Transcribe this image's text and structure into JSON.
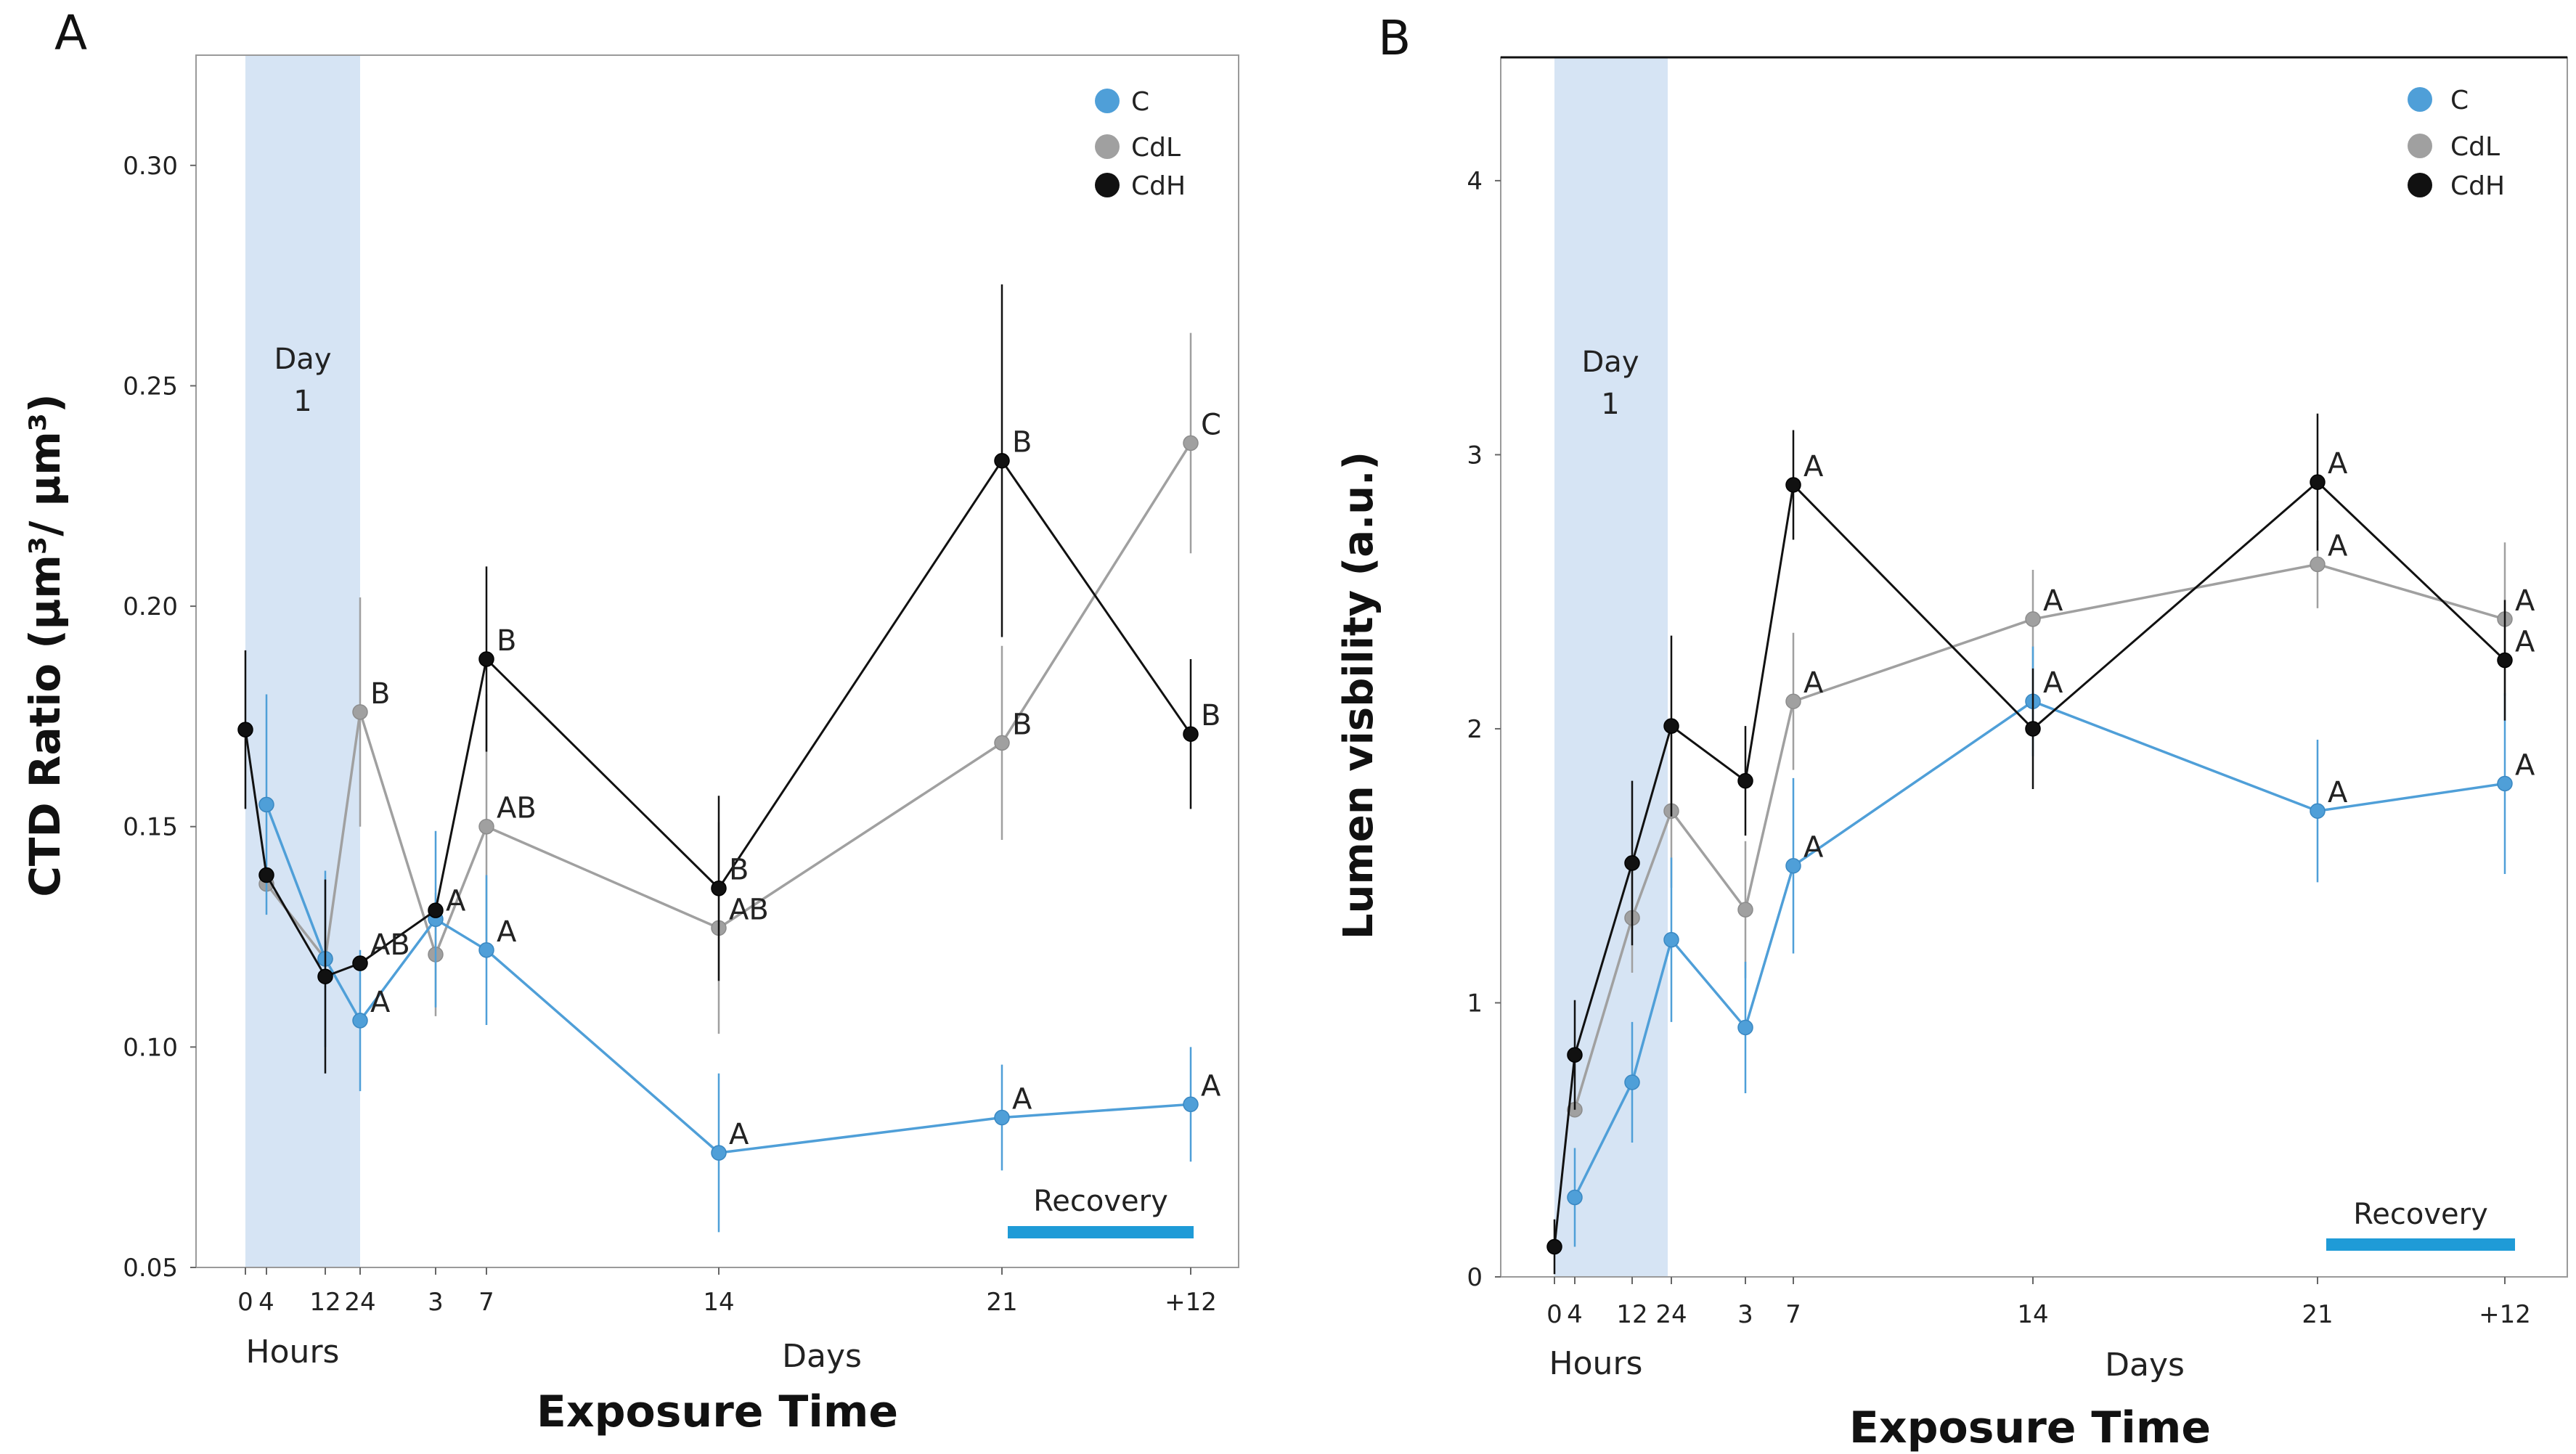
{
  "chart_data": [
    {
      "type": "line",
      "panel_label": "A",
      "ylabel": "CTD Ratio (µm³/ µm³)",
      "xlabel": "Exposure Time",
      "x_group_labels": [
        "Hours",
        "Days"
      ],
      "ylim": [
        0.05,
        0.325
      ],
      "yticks": [
        0.05,
        0.1,
        0.15,
        0.2,
        0.25,
        0.3
      ],
      "ytick_labels": [
        "0.05",
        "0.10",
        "0.15",
        "0.20",
        "0.25",
        "0.30"
      ],
      "x_ticks": [
        "0",
        "4",
        "12",
        "24",
        "3",
        "7",
        "14",
        "21",
        "+12"
      ],
      "shaded_band": {
        "label_line1": "Day",
        "label_line2": "1",
        "from": "0",
        "to": "24"
      },
      "recovery_label": "Recovery",
      "series": [
        {
          "name": "C",
          "color": "#4f9fd8",
          "points": [
            {
              "x": "4",
              "y": 0.155,
              "err": 0.025,
              "letter": ""
            },
            {
              "x": "12",
              "y": 0.12,
              "err": 0.02,
              "letter": ""
            },
            {
              "x": "24",
              "y": 0.106,
              "err": 0.016,
              "letter": "A"
            },
            {
              "x": "3",
              "y": 0.129,
              "err": 0.02,
              "letter": "A"
            },
            {
              "x": "7",
              "y": 0.122,
              "err": 0.017,
              "letter": "A"
            },
            {
              "x": "14",
              "y": 0.076,
              "err": 0.018,
              "letter": "A"
            },
            {
              "x": "21",
              "y": 0.084,
              "err": 0.012,
              "letter": "A"
            },
            {
              "x": "+12",
              "y": 0.087,
              "err": 0.013,
              "letter": "A"
            }
          ]
        },
        {
          "name": "CdL",
          "color": "#a0a0a0",
          "points": [
            {
              "x": "4",
              "y": 0.137,
              "err": 0.0,
              "letter": ""
            },
            {
              "x": "12",
              "y": 0.12,
              "err": 0.0,
              "letter": ""
            },
            {
              "x": "24",
              "y": 0.176,
              "err": 0.026,
              "letter": "B"
            },
            {
              "x": "3",
              "y": 0.121,
              "err": 0.014,
              "letter": ""
            },
            {
              "x": "7",
              "y": 0.15,
              "err": 0.03,
              "letter": "AB"
            },
            {
              "x": "14",
              "y": 0.127,
              "err": 0.024,
              "letter": "AB"
            },
            {
              "x": "21",
              "y": 0.169,
              "err": 0.022,
              "letter": "B"
            },
            {
              "x": "+12",
              "y": 0.237,
              "err": 0.025,
              "letter": "C"
            }
          ]
        },
        {
          "name": "CdH",
          "color": "#111111",
          "points": [
            {
              "x": "0",
              "y": 0.172,
              "err": 0.018,
              "letter": ""
            },
            {
              "x": "4",
              "y": 0.139,
              "err": 0.0,
              "letter": ""
            },
            {
              "x": "12",
              "y": 0.116,
              "err": 0.022,
              "letter": ""
            },
            {
              "x": "24",
              "y": 0.119,
              "err": 0.0,
              "letter": "AB"
            },
            {
              "x": "3",
              "y": 0.131,
              "err": 0.0,
              "letter": ""
            },
            {
              "x": "7",
              "y": 0.188,
              "err": 0.021,
              "letter": "B"
            },
            {
              "x": "14",
              "y": 0.136,
              "err": 0.021,
              "letter": "B"
            },
            {
              "x": "21",
              "y": 0.233,
              "err": 0.04,
              "letter": "B"
            },
            {
              "x": "+12",
              "y": 0.171,
              "err": 0.017,
              "letter": "B"
            }
          ]
        }
      ]
    },
    {
      "type": "line",
      "panel_label": "B",
      "ylabel": "Lumen visbility (a.u.)",
      "xlabel": "Exposure Time",
      "x_group_labels": [
        "Hours",
        "Days"
      ],
      "ylim": [
        0,
        4.45
      ],
      "yticks": [
        0,
        1,
        2,
        3,
        4
      ],
      "ytick_labels": [
        "0",
        "1",
        "2",
        "3",
        "4"
      ],
      "x_ticks": [
        "0",
        "4",
        "12",
        "24",
        "3",
        "7",
        "14",
        "21",
        "+12"
      ],
      "shaded_band": {
        "label_line1": "Day",
        "label_line2": "1",
        "from": "0",
        "to": "24"
      },
      "recovery_label": "Recovery",
      "series": [
        {
          "name": "C",
          "color": "#4f9fd8",
          "points": [
            {
              "x": "4",
              "y": 0.29,
              "err": 0.18,
              "letter": ""
            },
            {
              "x": "12",
              "y": 0.71,
              "err": 0.22,
              "letter": ""
            },
            {
              "x": "24",
              "y": 1.23,
              "err": 0.3,
              "letter": ""
            },
            {
              "x": "3",
              "y": 0.91,
              "err": 0.24,
              "letter": ""
            },
            {
              "x": "7",
              "y": 1.5,
              "err": 0.32,
              "letter": "A"
            },
            {
              "x": "14",
              "y": 2.1,
              "err": 0.2,
              "letter": "A"
            },
            {
              "x": "21",
              "y": 1.7,
              "err": 0.26,
              "letter": "A"
            },
            {
              "x": "+12",
              "y": 1.8,
              "err": 0.33,
              "letter": "A"
            }
          ]
        },
        {
          "name": "CdL",
          "color": "#a0a0a0",
          "points": [
            {
              "x": "4",
              "y": 0.61,
              "err": 0.0,
              "letter": ""
            },
            {
              "x": "12",
              "y": 1.31,
              "err": 0.2,
              "letter": ""
            },
            {
              "x": "24",
              "y": 1.7,
              "err": 0.28,
              "letter": ""
            },
            {
              "x": "3",
              "y": 1.34,
              "err": 0.25,
              "letter": ""
            },
            {
              "x": "7",
              "y": 2.1,
              "err": 0.25,
              "letter": "A"
            },
            {
              "x": "14",
              "y": 2.4,
              "err": 0.18,
              "letter": "A"
            },
            {
              "x": "21",
              "y": 2.6,
              "err": 0.16,
              "letter": "A"
            },
            {
              "x": "+12",
              "y": 2.4,
              "err": 0.28,
              "letter": "A"
            }
          ]
        },
        {
          "name": "CdH",
          "color": "#111111",
          "points": [
            {
              "x": "0",
              "y": 0.11,
              "err": 0.1,
              "letter": ""
            },
            {
              "x": "4",
              "y": 0.81,
              "err": 0.2,
              "letter": ""
            },
            {
              "x": "12",
              "y": 1.51,
              "err": 0.3,
              "letter": ""
            },
            {
              "x": "24",
              "y": 2.01,
              "err": 0.33,
              "letter": ""
            },
            {
              "x": "3",
              "y": 1.81,
              "err": 0.2,
              "letter": ""
            },
            {
              "x": "7",
              "y": 2.89,
              "err": 0.2,
              "letter": "A"
            },
            {
              "x": "14",
              "y": 2.0,
              "err": 0.22,
              "letter": ""
            },
            {
              "x": "21",
              "y": 2.9,
              "err": 0.25,
              "letter": "A"
            },
            {
              "x": "+12",
              "y": 2.25,
              "err": 0.22,
              "letter": "A"
            }
          ]
        }
      ]
    }
  ]
}
